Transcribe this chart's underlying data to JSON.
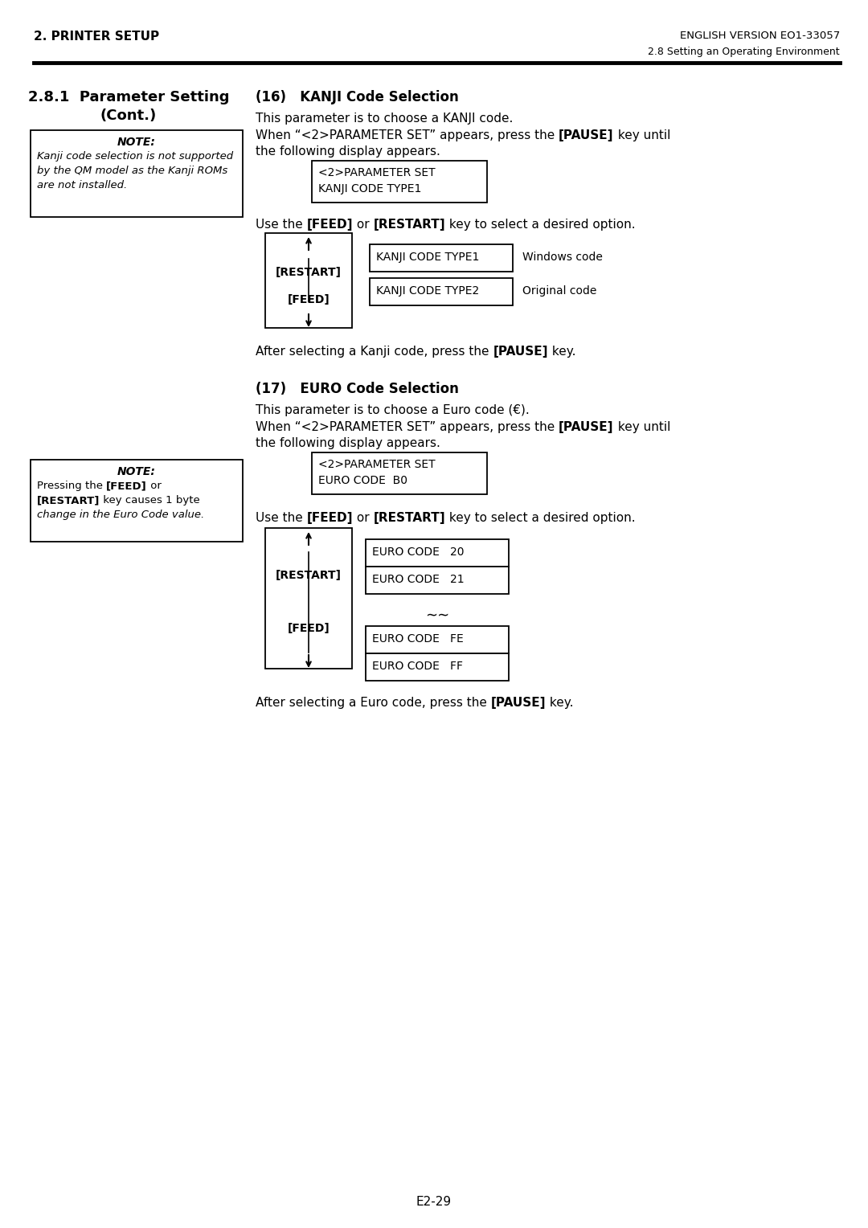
{
  "page_title_left": "2. PRINTER SETUP",
  "page_title_right": "ENGLISH VERSION EO1-33057",
  "page_subtitle_right": "2.8 Setting an Operating Environment",
  "section_heading1": "2.8.1  Parameter Setting",
  "section_heading2": "(Cont.)",
  "note1_title": "NOTE:",
  "note1_line1": "Kanji code selection is not supported",
  "note1_line2": "by the QM model as the Kanji ROMs",
  "note1_line3": "are not installed.",
  "kanji_title": "(16)   KANJI Code Selection",
  "kanji_p1": "This parameter is to choose a KANJI code.",
  "kanji_p2a": "When “<2>PARAMETER SET” appears, press the ",
  "kanji_p2b": "[PAUSE]",
  "kanji_p2c": " key until",
  "kanji_p2d": "the following display appears.",
  "kanji_disp1": "<2>PARAMETER SET",
  "kanji_disp2": "KANJI CODE TYPE1",
  "kanji_use_a": "Use the ",
  "kanji_use_b": "[FEED]",
  "kanji_use_c": " or ",
  "kanji_use_d": "[RESTART]",
  "kanji_use_e": " key to select a desired option.",
  "kanji_restart": "[RESTART]",
  "kanji_feed": "[FEED]",
  "kanji_opt1": "KANJI CODE TYPE1",
  "kanji_opt1_desc": "Windows code",
  "kanji_opt2": "KANJI CODE TYPE2",
  "kanji_opt2_desc": "Original code",
  "kanji_after_a": "After selecting a Kanji code, press the ",
  "kanji_after_b": "[PAUSE]",
  "kanji_after_c": " key.",
  "euro_title": "(17)   EURO Code Selection",
  "euro_p1": "This parameter is to choose a Euro code (€).",
  "euro_p2a": "When “<2>PARAMETER SET” appears, press the ",
  "euro_p2b": "[PAUSE]",
  "euro_p2c": " key until",
  "euro_p2d": "the following display appears.",
  "note2_title": "NOTE:",
  "note2_line1a": "Pressing the ",
  "note2_line1b": "[FEED]",
  "note2_line1c": " or",
  "note2_line2a": "[RESTART]",
  "note2_line2b": " key causes 1 byte",
  "note2_line3": "change in the Euro Code value.",
  "euro_disp1": "<2>PARAMETER SET",
  "euro_disp2": "EURO CODE  B0",
  "euro_use_a": "Use the ",
  "euro_use_b": "[FEED]",
  "euro_use_c": " or ",
  "euro_use_d": "[RESTART]",
  "euro_use_e": " key to select a desired option.",
  "euro_restart": "[RESTART]",
  "euro_feed": "[FEED]",
  "euro_opt1": "EURO CODE   20",
  "euro_opt2": "EURO CODE   21",
  "euro_opt3": "EURO CODE   FE",
  "euro_opt4": "EURO CODE   FF",
  "euro_after_a": "After selecting a Euro code, press the ",
  "euro_after_b": "[PAUSE]",
  "euro_after_c": " key.",
  "page_number": "E2-29"
}
